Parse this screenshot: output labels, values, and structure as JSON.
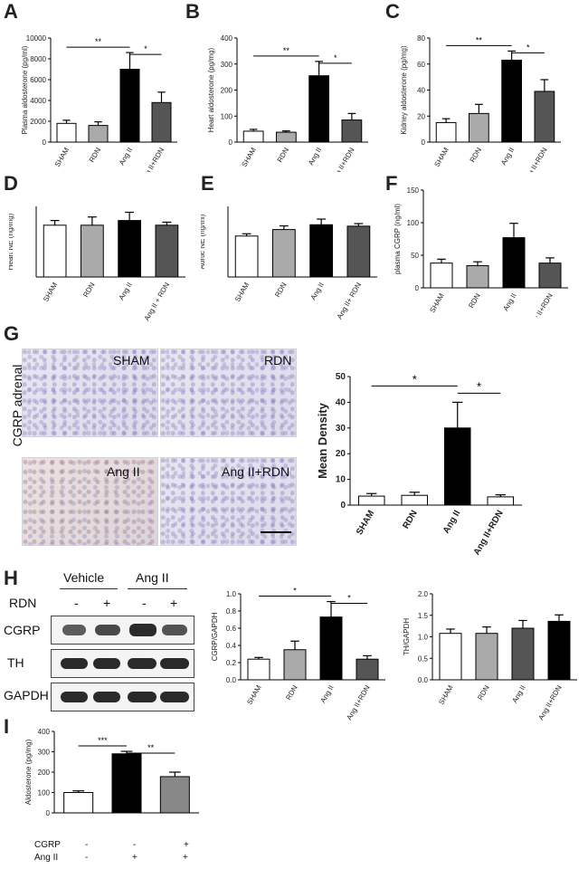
{
  "panels": {
    "A": "A",
    "B": "B",
    "C": "C",
    "D": "D",
    "E": "E",
    "F": "F",
    "G": "G",
    "H": "H",
    "I": "I"
  },
  "micro": {
    "side_label": "CGRP adrenal",
    "labels": [
      "SHAM",
      "RDN",
      "Ang II",
      "Ang II+RDN"
    ]
  },
  "blot": {
    "group_vehicle": "Vehicle",
    "group_angii": "Ang II",
    "rdn_label": "RDN",
    "rdn_signs": [
      "-",
      "+",
      "-",
      "+"
    ],
    "rows": [
      "CGRP",
      "TH",
      "GAPDH"
    ]
  },
  "conditions_I": {
    "cgrp_label": "CGRP",
    "angii_label": "Ang II",
    "cgrp_signs": [
      "-",
      "-",
      "+"
    ],
    "angii_signs": [
      "-",
      "+",
      "+"
    ]
  },
  "chart_data": [
    {
      "id": "A",
      "type": "bar",
      "categories": [
        "SHAM",
        "RDN",
        "Ang II",
        "Ang II+RDN"
      ],
      "values": [
        1800,
        1600,
        7000,
        3800
      ],
      "errors": [
        300,
        350,
        1600,
        1000
      ],
      "ylabel": "Plasma aldosterone (pg/ml)",
      "ylim": [
        0,
        10000
      ],
      "yticks": [
        "0",
        "2000",
        "4000",
        "6000",
        "8000",
        "10000"
      ],
      "colors": [
        "#ffffff",
        "#aaaaaa",
        "#000000",
        "#555555"
      ],
      "sig": [
        {
          "from": 0,
          "to": 2,
          "label": "**"
        },
        {
          "from": 2,
          "to": 3,
          "label": "*"
        }
      ]
    },
    {
      "id": "B",
      "type": "bar",
      "categories": [
        "SHAM",
        "RDN",
        "Ang II",
        "Ang II+RDN"
      ],
      "values": [
        42,
        38,
        255,
        85
      ],
      "errors": [
        7,
        5,
        55,
        25
      ],
      "ylabel": "Heart aldosterone (pg/mg)",
      "ylim": [
        0,
        400
      ],
      "yticks": [
        "0",
        "100",
        "200",
        "300",
        "400"
      ],
      "colors": [
        "#ffffff",
        "#aaaaaa",
        "#000000",
        "#555555"
      ],
      "sig": [
        {
          "from": 0,
          "to": 2,
          "label": "**"
        },
        {
          "from": 2,
          "to": 3,
          "label": "*"
        }
      ]
    },
    {
      "id": "C",
      "type": "bar",
      "categories": [
        "SHAM",
        "RDN",
        "Ang II",
        "Ang II+RDN"
      ],
      "values": [
        15,
        22,
        63,
        39
      ],
      "errors": [
        3,
        7,
        7,
        9
      ],
      "ylabel": "Kidney aldosterone (pg/mg)",
      "ylim": [
        0,
        80
      ],
      "yticks": [
        "0",
        "20",
        "40",
        "60",
        "80"
      ],
      "colors": [
        "#ffffff",
        "#aaaaaa",
        "#000000",
        "#555555"
      ],
      "sig": [
        {
          "from": 0,
          "to": 2,
          "label": "**"
        },
        {
          "from": 2,
          "to": 3,
          "label": "*"
        }
      ]
    },
    {
      "id": "D",
      "type": "bar",
      "categories": [
        "SHAM",
        "RDN",
        "Ang II",
        "Ang II + RDN"
      ],
      "values": [
        22,
        22,
        24,
        22
      ],
      "errors": [
        2,
        3.5,
        3.5,
        1.3
      ],
      "ylabel": "Heart NE (ng/mg)",
      "ylim": [
        0,
        30
      ],
      "yticks": [],
      "colors": [
        "#ffffff",
        "#aaaaaa",
        "#000000",
        "#555555"
      ],
      "sig": []
    },
    {
      "id": "E",
      "type": "bar",
      "categories": [
        "SHAM",
        "RDN",
        "Ang II",
        "Ang II+ RDN"
      ],
      "values": [
        14.5,
        16.8,
        18.5,
        18
      ],
      "errors": [
        0.8,
        1.3,
        2,
        0.9
      ],
      "ylabel": "Aortic NE (ng/ml)",
      "ylim": [
        0,
        25
      ],
      "yticks": [],
      "colors": [
        "#ffffff",
        "#aaaaaa",
        "#000000",
        "#555555"
      ],
      "sig": []
    },
    {
      "id": "F",
      "type": "bar",
      "categories": [
        "SHAM",
        "RDN",
        "Ang II",
        "Ang II+RDN"
      ],
      "values": [
        38,
        34,
        77,
        38
      ],
      "errors": [
        6,
        6,
        22,
        8
      ],
      "ylabel": "plasma CGRP (ng/ml)",
      "ylim": [
        0,
        150
      ],
      "yticks": [
        "0",
        "50",
        "100",
        "150"
      ],
      "colors": [
        "#ffffff",
        "#aaaaaa",
        "#000000",
        "#555555"
      ],
      "sig": []
    },
    {
      "id": "G",
      "type": "bar",
      "categories": [
        "SHAM",
        "RDN",
        "Ang II",
        "Ang II+RDN"
      ],
      "values": [
        3.5,
        3.8,
        30,
        3.2
      ],
      "errors": [
        1,
        1.2,
        10,
        0.8
      ],
      "ylabel": "Mean Density",
      "ylim": [
        0,
        50
      ],
      "yticks": [
        "0",
        "10",
        "20",
        "30",
        "40",
        "50"
      ],
      "colors": [
        "#ffffff",
        "#ffffff",
        "#000000",
        "#ffffff"
      ],
      "sig": [
        {
          "from": 0,
          "to": 2,
          "label": "*"
        },
        {
          "from": 2,
          "to": 3,
          "label": "*"
        }
      ]
    },
    {
      "id": "H1",
      "type": "bar",
      "categories": [
        "SHAM",
        "RDN",
        "Ang II",
        "Ang II+RDN"
      ],
      "values": [
        0.24,
        0.35,
        0.73,
        0.24
      ],
      "errors": [
        0.02,
        0.1,
        0.18,
        0.04
      ],
      "ylabel": "CGRP/GAPDH",
      "ylim": [
        0,
        1.0
      ],
      "yticks": [
        "0.0",
        "0.2",
        "0.4",
        "0.6",
        "0.8",
        "1.0"
      ],
      "colors": [
        "#ffffff",
        "#aaaaaa",
        "#000000",
        "#555555"
      ],
      "sig": [
        {
          "from": 0,
          "to": 2,
          "label": "*"
        },
        {
          "from": 2,
          "to": 3,
          "label": "*"
        }
      ]
    },
    {
      "id": "H2",
      "type": "bar",
      "categories": [
        "SHAM",
        "RDN",
        "Ang II",
        "Ang II+RDN"
      ],
      "values": [
        1.08,
        1.08,
        1.2,
        1.36
      ],
      "errors": [
        0.1,
        0.15,
        0.18,
        0.15
      ],
      "ylabel": "TH/GAPDH",
      "ylim": [
        0,
        2.0
      ],
      "yticks": [
        "0.0",
        "0.5",
        "1.0",
        "1.5",
        "2.0"
      ],
      "colors": [
        "#ffffff",
        "#aaaaaa",
        "#555555",
        "#000000"
      ],
      "sig": []
    },
    {
      "id": "I",
      "type": "bar",
      "categories": [
        "",
        "",
        ""
      ],
      "values": [
        100,
        290,
        178
      ],
      "errors": [
        8,
        12,
        22
      ],
      "ylabel": "Aldosterone (pg/mg)",
      "ylim": [
        0,
        400
      ],
      "yticks": [
        "0",
        "100",
        "200",
        "300",
        "400"
      ],
      "colors": [
        "#ffffff",
        "#000000",
        "#888888"
      ],
      "sig": [
        {
          "from": 0,
          "to": 1,
          "label": "***"
        },
        {
          "from": 1,
          "to": 2,
          "label": "**"
        }
      ]
    }
  ]
}
